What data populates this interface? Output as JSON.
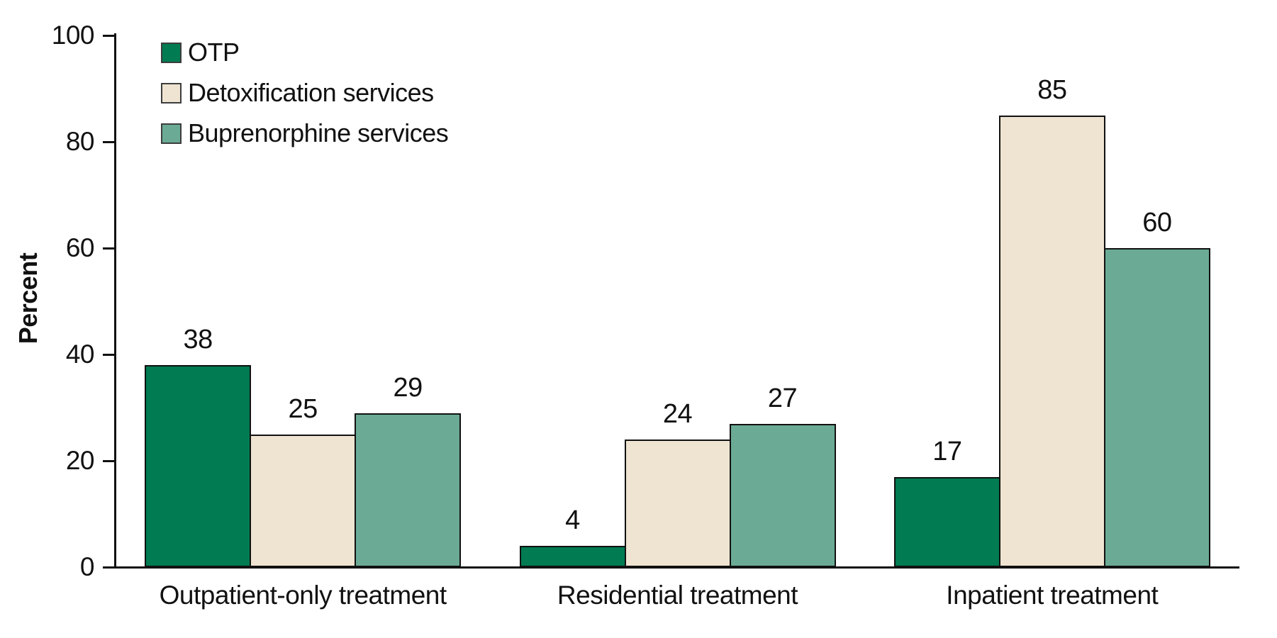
{
  "chart_data": {
    "type": "bar",
    "title": "",
    "xlabel": "",
    "ylabel": "Percent",
    "ylim": [
      0,
      100
    ],
    "yticks": [
      0,
      20,
      40,
      60,
      80,
      100
    ],
    "grid": false,
    "legend_position": "top-left-inside",
    "categories": [
      "Outpatient-only treatment",
      "Residential treatment",
      "Inpatient treatment"
    ],
    "series": [
      {
        "name": "OTP",
        "color": "#007B52",
        "values": [
          38,
          4,
          17
        ]
      },
      {
        "name": "Detoxification services",
        "color": "#EEE4D1",
        "values": [
          25,
          24,
          85
        ]
      },
      {
        "name": "Buprenorphine services",
        "color": "#6BAB96",
        "values": [
          29,
          27,
          60
        ]
      }
    ],
    "colors": {
      "axis": "#111111",
      "bar_border": "#111111",
      "text": "#111111",
      "legend_swatch_border": "#3d3d3d",
      "background": "#FFFFFF"
    }
  }
}
